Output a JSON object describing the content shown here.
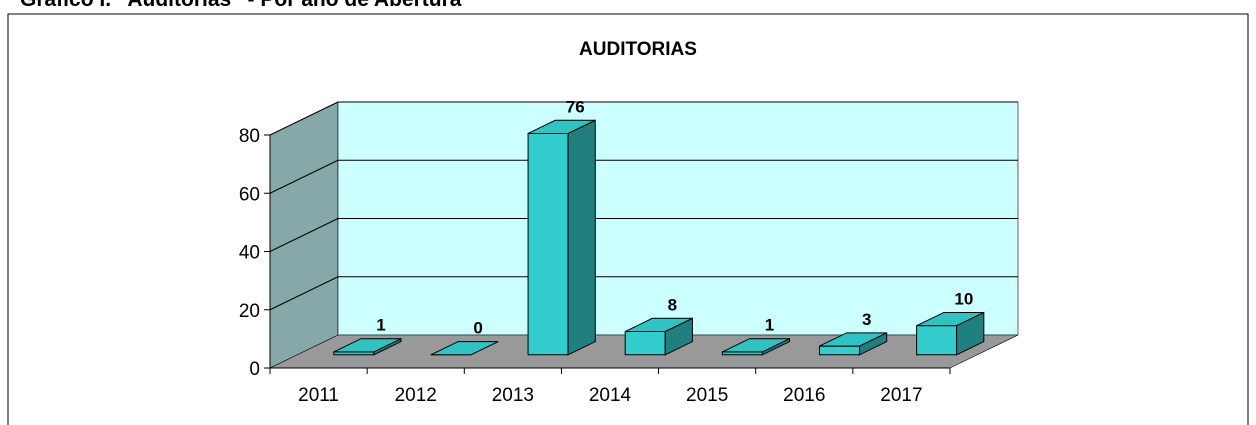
{
  "header": "Gráfico I. “Auditorias” - Por año de Abertura",
  "chart_data": {
    "type": "bar3d",
    "title": "AUDITORIAS",
    "categories": [
      "2011",
      "2012",
      "2013",
      "2014",
      "2015",
      "2016",
      "2017"
    ],
    "values": [
      1,
      0,
      76,
      8,
      1,
      3,
      10
    ],
    "color": "#33cccc",
    "ylim": [
      0,
      80
    ],
    "yticks": [
      0,
      20,
      40,
      60,
      80
    ],
    "grid": true
  }
}
